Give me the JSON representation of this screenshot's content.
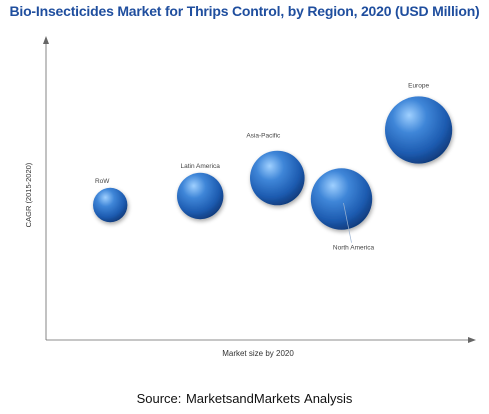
{
  "chart_data": {
    "type": "scatter",
    "title": "Bio-Insecticides Market for Thrips Control, by Region, 2020 (USD Million)",
    "xlabel": "Market size by 2020",
    "ylabel": "CAGR (2015-2020)",
    "grid": false,
    "legend": "none",
    "bubble_color": "#2f6fc4",
    "series": [
      {
        "label": "RoW",
        "x": 1.0,
        "y": 4.5,
        "size": 1.0
      },
      {
        "label": "Latin America",
        "x": 2.4,
        "y": 4.8,
        "size": 3.0
      },
      {
        "label": "Asia-Pacific",
        "x": 3.6,
        "y": 5.4,
        "size": 5.0
      },
      {
        "label": "North America",
        "x": 4.6,
        "y": 4.7,
        "size": 7.0
      },
      {
        "label": "Europe",
        "x": 5.8,
        "y": 7.0,
        "size": 9.0
      }
    ]
  },
  "source": "Source: MarketsandMarkets  Analysis"
}
